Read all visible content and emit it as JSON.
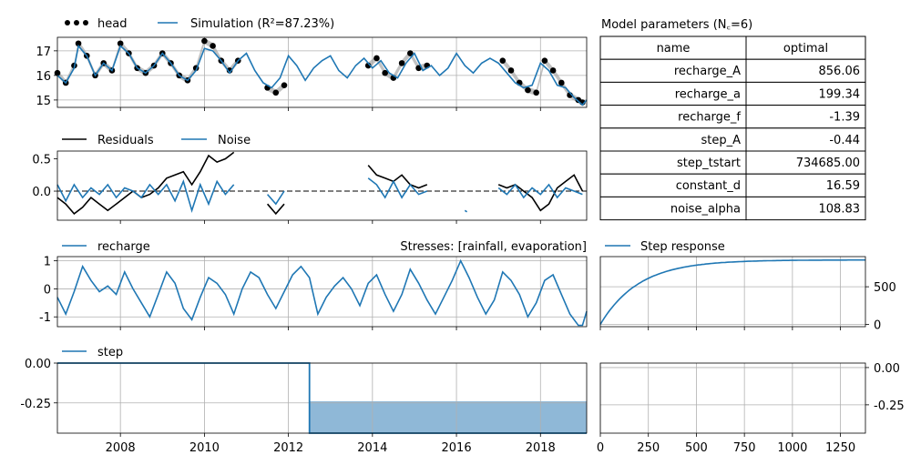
{
  "colors": {
    "blue": "#1f77b4",
    "black": "#000000",
    "fill": "#8fb8d7",
    "grid": "#b0b0b0"
  },
  "legends": {
    "head": "head",
    "simulation": "Simulation (R²=87.23%)",
    "residuals": "Residuals",
    "noise": "Noise",
    "recharge": "recharge",
    "stresses": "Stresses: [rainfall, evaporation]",
    "step_response": "Step response",
    "step": "step"
  },
  "table": {
    "title": "Model parameters (N꜀=6)",
    "header": [
      "name",
      "optimal"
    ],
    "rows": [
      [
        "recharge_A",
        "856.06"
      ],
      [
        "recharge_a",
        "199.34"
      ],
      [
        "recharge_f",
        "-1.39"
      ],
      [
        "step_A",
        "-0.44"
      ],
      [
        "step_tstart",
        "734685.00"
      ],
      [
        "constant_d",
        "16.59"
      ],
      [
        "noise_alpha",
        "108.83"
      ]
    ]
  },
  "chart_data": [
    {
      "type": "line",
      "panel": "head",
      "xlim": [
        2006.5,
        2019.1
      ],
      "ylim": [
        14.7,
        17.55
      ],
      "yticks": [
        "15",
        "16",
        "17"
      ],
      "xticks": [
        2008,
        2010,
        2012,
        2014,
        2016,
        2018
      ],
      "series": [
        {
          "name": "head",
          "style": "points",
          "segments": [
            {
              "x": [
                2006.5,
                2006.7,
                2006.9,
                2007.0,
                2007.2,
                2007.4,
                2007.6,
                2007.8,
                2008.0,
                2008.2,
                2008.4,
                2008.6,
                2008.8,
                2009.0,
                2009.2,
                2009.4,
                2009.6,
                2009.8,
                2010.0,
                2010.2,
                2010.4,
                2010.6,
                2010.8
              ],
              "y": [
                16.1,
                15.7,
                16.4,
                17.3,
                16.8,
                16.0,
                16.5,
                16.2,
                17.3,
                16.9,
                16.3,
                16.1,
                16.4,
                16.9,
                16.5,
                16.0,
                15.8,
                16.3,
                17.4,
                17.2,
                16.6,
                16.2,
                16.6
              ]
            },
            {
              "x": [
                2011.5,
                2011.7,
                2011.9
              ],
              "y": [
                15.5,
                15.3,
                15.6
              ]
            },
            {
              "x": [
                2013.9,
                2014.1,
                2014.3,
                2014.5,
                2014.7,
                2014.9,
                2015.1,
                2015.3
              ],
              "y": [
                16.4,
                16.7,
                16.1,
                15.9,
                16.5,
                16.9,
                16.3,
                16.4
              ]
            },
            {
              "x": [
                2017.1,
                2017.3,
                2017.5,
                2017.7,
                2017.9,
                2018.1,
                2018.3,
                2018.5,
                2018.7,
                2018.9,
                2019.0
              ],
              "y": [
                16.6,
                16.2,
                15.7,
                15.4,
                15.3,
                16.6,
                16.2,
                15.7,
                15.2,
                15.0,
                14.9
              ]
            }
          ]
        },
        {
          "name": "Simulation (R²=87.23%)",
          "x": [
            2006.5,
            2006.7,
            2006.9,
            2007.0,
            2007.2,
            2007.4,
            2007.6,
            2007.8,
            2008.0,
            2008.2,
            2008.4,
            2008.6,
            2008.8,
            2009.0,
            2009.2,
            2009.4,
            2009.6,
            2009.8,
            2010.0,
            2010.2,
            2010.4,
            2010.6,
            2010.8,
            2011.0,
            2011.2,
            2011.4,
            2011.6,
            2011.8,
            2012.0,
            2012.2,
            2012.4,
            2012.6,
            2012.8,
            2013.0,
            2013.2,
            2013.4,
            2013.6,
            2013.8,
            2014.0,
            2014.2,
            2014.4,
            2014.6,
            2014.8,
            2015.0,
            2015.2,
            2015.4,
            2015.6,
            2015.8,
            2016.0,
            2016.2,
            2016.4,
            2016.6,
            2016.8,
            2017.0,
            2017.2,
            2017.4,
            2017.6,
            2017.8,
            2018.0,
            2018.2,
            2018.4,
            2018.6,
            2018.8,
            2019.0,
            2019.1
          ],
          "y": [
            16.0,
            15.7,
            16.3,
            17.2,
            16.8,
            16.0,
            16.5,
            16.2,
            17.2,
            16.9,
            16.3,
            16.1,
            16.4,
            16.9,
            16.5,
            16.0,
            15.8,
            16.2,
            17.1,
            17.0,
            16.6,
            16.1,
            16.6,
            16.9,
            16.2,
            15.7,
            15.5,
            15.9,
            16.8,
            16.4,
            15.8,
            16.3,
            16.6,
            16.8,
            16.2,
            15.9,
            16.4,
            16.7,
            16.3,
            16.6,
            16.1,
            15.9,
            16.5,
            16.9,
            16.2,
            16.4,
            16.0,
            16.3,
            16.9,
            16.4,
            16.1,
            16.5,
            16.7,
            16.5,
            16.1,
            15.7,
            15.5,
            15.6,
            16.5,
            16.2,
            15.6,
            15.5,
            15.1,
            14.8,
            15.0
          ]
        }
      ]
    },
    {
      "type": "line",
      "panel": "residuals",
      "xlim": [
        2006.5,
        2019.1
      ],
      "ylim": [
        -0.45,
        0.62
      ],
      "yticks": [
        "0.0",
        "0.5"
      ],
      "series": [
        {
          "name": "Residuals",
          "segments": [
            {
              "x": [
                2006.5,
                2006.7,
                2006.9,
                2007.1,
                2007.3,
                2007.5,
                2007.7,
                2007.9,
                2008.1,
                2008.3,
                2008.5,
                2008.7,
                2008.9,
                2009.1,
                2009.3,
                2009.5,
                2009.7,
                2009.9,
                2010.1,
                2010.3,
                2010.5,
                2010.7
              ],
              "y": [
                -0.1,
                -0.2,
                -0.35,
                -0.25,
                -0.1,
                -0.2,
                -0.3,
                -0.2,
                -0.1,
                0.0,
                -0.1,
                -0.05,
                0.05,
                0.2,
                0.25,
                0.3,
                0.1,
                0.3,
                0.55,
                0.45,
                0.5,
                0.6
              ]
            },
            {
              "x": [
                2011.5,
                2011.7,
                2011.9
              ],
              "y": [
                -0.2,
                -0.35,
                -0.2
              ]
            },
            {
              "x": [
                2013.9,
                2014.1,
                2014.3,
                2014.5,
                2014.7,
                2014.9,
                2015.1,
                2015.3
              ],
              "y": [
                0.4,
                0.25,
                0.2,
                0.15,
                0.25,
                0.1,
                0.05,
                0.1
              ]
            },
            {
              "x": [
                2017.0,
                2017.2,
                2017.4,
                2017.6,
                2017.8,
                2018.0,
                2018.2,
                2018.4,
                2018.6,
                2018.8,
                2019.0
              ],
              "y": [
                0.1,
                0.05,
                0.1,
                0.0,
                -0.1,
                -0.3,
                -0.2,
                0.05,
                0.15,
                0.25,
                0.0
              ]
            }
          ]
        },
        {
          "name": "Noise",
          "segments": [
            {
              "x": [
                2006.5,
                2006.7,
                2006.9,
                2007.1,
                2007.3,
                2007.5,
                2007.7,
                2007.9,
                2008.1,
                2008.3,
                2008.5,
                2008.7,
                2008.9,
                2009.1,
                2009.3,
                2009.5,
                2009.7,
                2009.9,
                2010.1,
                2010.3,
                2010.5,
                2010.7
              ],
              "y": [
                0.1,
                -0.15,
                0.1,
                -0.1,
                0.05,
                -0.05,
                0.1,
                -0.1,
                0.05,
                0.0,
                -0.1,
                0.1,
                -0.05,
                0.1,
                -0.15,
                0.15,
                -0.3,
                0.1,
                -0.2,
                0.15,
                -0.05,
                0.1
              ]
            },
            {
              "x": [
                2011.5,
                2011.7,
                2011.9
              ],
              "y": [
                -0.05,
                -0.2,
                0.0
              ]
            },
            {
              "x": [
                2013.9,
                2014.1,
                2014.3,
                2014.5,
                2014.7,
                2014.9,
                2015.1,
                2015.3
              ],
              "y": [
                0.2,
                0.1,
                -0.1,
                0.15,
                -0.1,
                0.1,
                -0.05,
                0.0
              ]
            },
            {
              "x": [
                2016.2,
                2016.25
              ],
              "y": [
                -0.3,
                -0.32
              ]
            },
            {
              "x": [
                2017.0,
                2017.2,
                2017.4,
                2017.6,
                2017.8,
                2018.0,
                2018.2,
                2018.4,
                2018.6,
                2018.8,
                2019.0
              ],
              "y": [
                0.05,
                -0.05,
                0.1,
                -0.1,
                0.05,
                -0.05,
                0.1,
                -0.1,
                0.05,
                0.0,
                -0.05
              ]
            }
          ]
        }
      ],
      "zero_line": 0
    },
    {
      "type": "line",
      "panel": "recharge",
      "xlim": [
        2006.5,
        2019.1
      ],
      "ylim": [
        -1.35,
        1.15
      ],
      "yticks": [
        "-1",
        "0",
        "1"
      ],
      "series": [
        {
          "name": "recharge",
          "x": [
            2006.5,
            2006.7,
            2006.9,
            2007.1,
            2007.3,
            2007.5,
            2007.7,
            2007.9,
            2008.1,
            2008.3,
            2008.5,
            2008.7,
            2008.9,
            2009.1,
            2009.3,
            2009.5,
            2009.7,
            2009.9,
            2010.1,
            2010.3,
            2010.5,
            2010.7,
            2010.9,
            2011.1,
            2011.3,
            2011.5,
            2011.7,
            2011.9,
            2012.1,
            2012.3,
            2012.5,
            2012.7,
            2012.9,
            2013.1,
            2013.3,
            2013.5,
            2013.7,
            2013.9,
            2014.1,
            2014.3,
            2014.5,
            2014.7,
            2014.9,
            2015.1,
            2015.3,
            2015.5,
            2015.7,
            2015.9,
            2016.1,
            2016.3,
            2016.5,
            2016.7,
            2016.9,
            2017.1,
            2017.3,
            2017.5,
            2017.7,
            2017.9,
            2018.1,
            2018.3,
            2018.5,
            2018.7,
            2018.9,
            2019.0,
            2019.1
          ],
          "y": [
            -0.3,
            -0.9,
            -0.1,
            0.8,
            0.3,
            -0.1,
            0.1,
            -0.2,
            0.6,
            0.0,
            -0.5,
            -1.0,
            -0.2,
            0.6,
            0.2,
            -0.7,
            -1.1,
            -0.3,
            0.4,
            0.2,
            -0.2,
            -0.9,
            0.0,
            0.6,
            0.4,
            -0.2,
            -0.7,
            -0.1,
            0.5,
            0.8,
            0.4,
            -0.9,
            -0.3,
            0.1,
            0.4,
            0.0,
            -0.6,
            0.2,
            0.5,
            -0.2,
            -0.8,
            -0.2,
            0.7,
            0.2,
            -0.4,
            -0.9,
            -0.3,
            0.3,
            1.0,
            0.4,
            -0.3,
            -0.9,
            -0.4,
            0.6,
            0.3,
            -0.2,
            -1.0,
            -0.5,
            0.3,
            0.5,
            -0.2,
            -0.9,
            -1.3,
            -1.3,
            -0.8
          ]
        }
      ]
    },
    {
      "type": "area",
      "panel": "step",
      "xlim": [
        2006.5,
        2019.1
      ],
      "ylim": [
        -0.44,
        0.0
      ],
      "yticks": [
        "0.00",
        "-0.25"
      ],
      "series": [
        {
          "name": "step",
          "x": [
            2006.5,
            2012.5,
            2012.5,
            2019.1
          ],
          "y": [
            0.0,
            0.0,
            -0.44,
            -0.44
          ]
        }
      ],
      "band": {
        "x_start": 2012.5,
        "x_end": 2019.1,
        "y_top": -0.24,
        "y_bottom": -0.44
      }
    },
    {
      "type": "line",
      "panel": "step_response",
      "xlim": [
        0,
        1380
      ],
      "ylim": [
        -30,
        900
      ],
      "yticks": [
        "0",
        "500"
      ],
      "series": [
        {
          "name": "Step response",
          "A": 856.06,
          "a": 199.34
        }
      ]
    },
    {
      "type": "line",
      "panel": "step_response_lower",
      "xlim": [
        0,
        1380
      ],
      "ylim": [
        -0.44,
        0.03
      ],
      "yticks": [
        "0.00",
        "-0.25"
      ],
      "xticks": [
        0,
        250,
        500,
        750,
        1000,
        1250
      ]
    }
  ]
}
